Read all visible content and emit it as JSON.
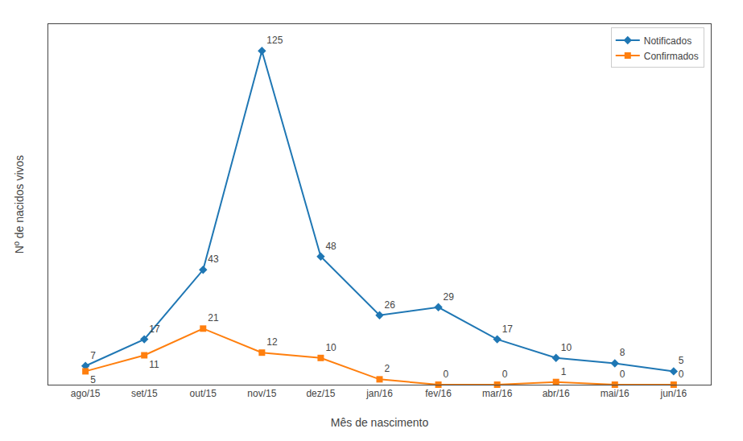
{
  "chart_data": {
    "type": "line",
    "xlabel": "Mês de nascimento",
    "ylabel": "Nº de nacidos vivos",
    "categories": [
      "ago/15",
      "set/15",
      "out/15",
      "nov/15",
      "dez/15",
      "jan/16",
      "fev/16",
      "mar/16",
      "abr/16",
      "mai/16",
      "jun/16"
    ],
    "series": [
      {
        "name": "Notificados",
        "marker": "diamond",
        "values": [
          7,
          17,
          43,
          125,
          48,
          26,
          29,
          17,
          10,
          8,
          5
        ]
      },
      {
        "name": "Confirmados",
        "marker": "square",
        "values": [
          5,
          11,
          21,
          12,
          10,
          2,
          0,
          0,
          1,
          0,
          0
        ]
      }
    ],
    "ylim": [
      0,
      135
    ],
    "tick_labels": "x",
    "grid": false,
    "legend": "upper right",
    "data_labels": true
  }
}
